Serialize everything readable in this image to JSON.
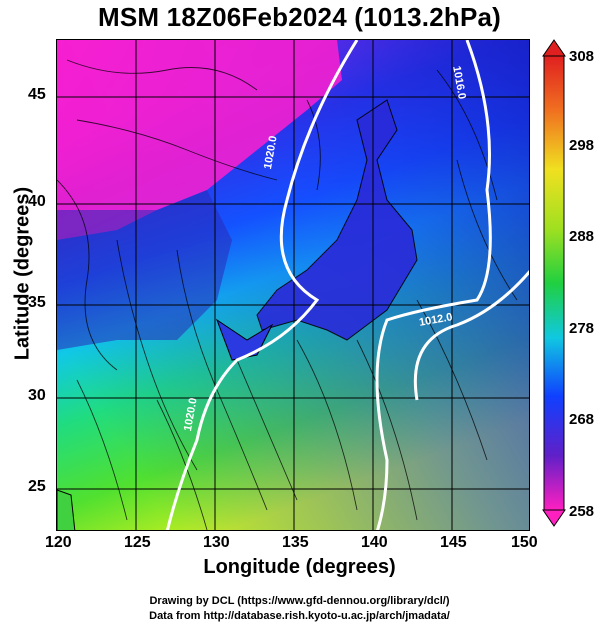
{
  "title": "MSM 18Z06Feb2024 (1013.2hPa)",
  "ylabel": "Latitude  (degrees)",
  "xlabel": "Longitude (degrees)",
  "x_ticks": [
    "120",
    "125",
    "130",
    "135",
    "140",
    "145",
    "150"
  ],
  "y_ticks": [
    "45",
    "40",
    "35",
    "30",
    "25"
  ],
  "colorbar_ticks": [
    "308",
    "298",
    "288",
    "278",
    "268",
    "258"
  ],
  "contour_labels": [
    "1020.0",
    "1016.0",
    "1012.0",
    "1020.0"
  ],
  "credit_line1": "Drawing by DCL (https://www.gfd-dennou.org/library/dcl/)",
  "credit_line2": "Data from http://database.rish.kyoto-u.ac.jp/arch/jmadata/",
  "colors": {
    "magenta": "#ff22cc",
    "purple": "#8a2be2",
    "blue": "#1a3dff",
    "cyan": "#10c8e8",
    "green": "#2ecc40",
    "yellow": "#e8f020",
    "red": "#e63020"
  }
}
